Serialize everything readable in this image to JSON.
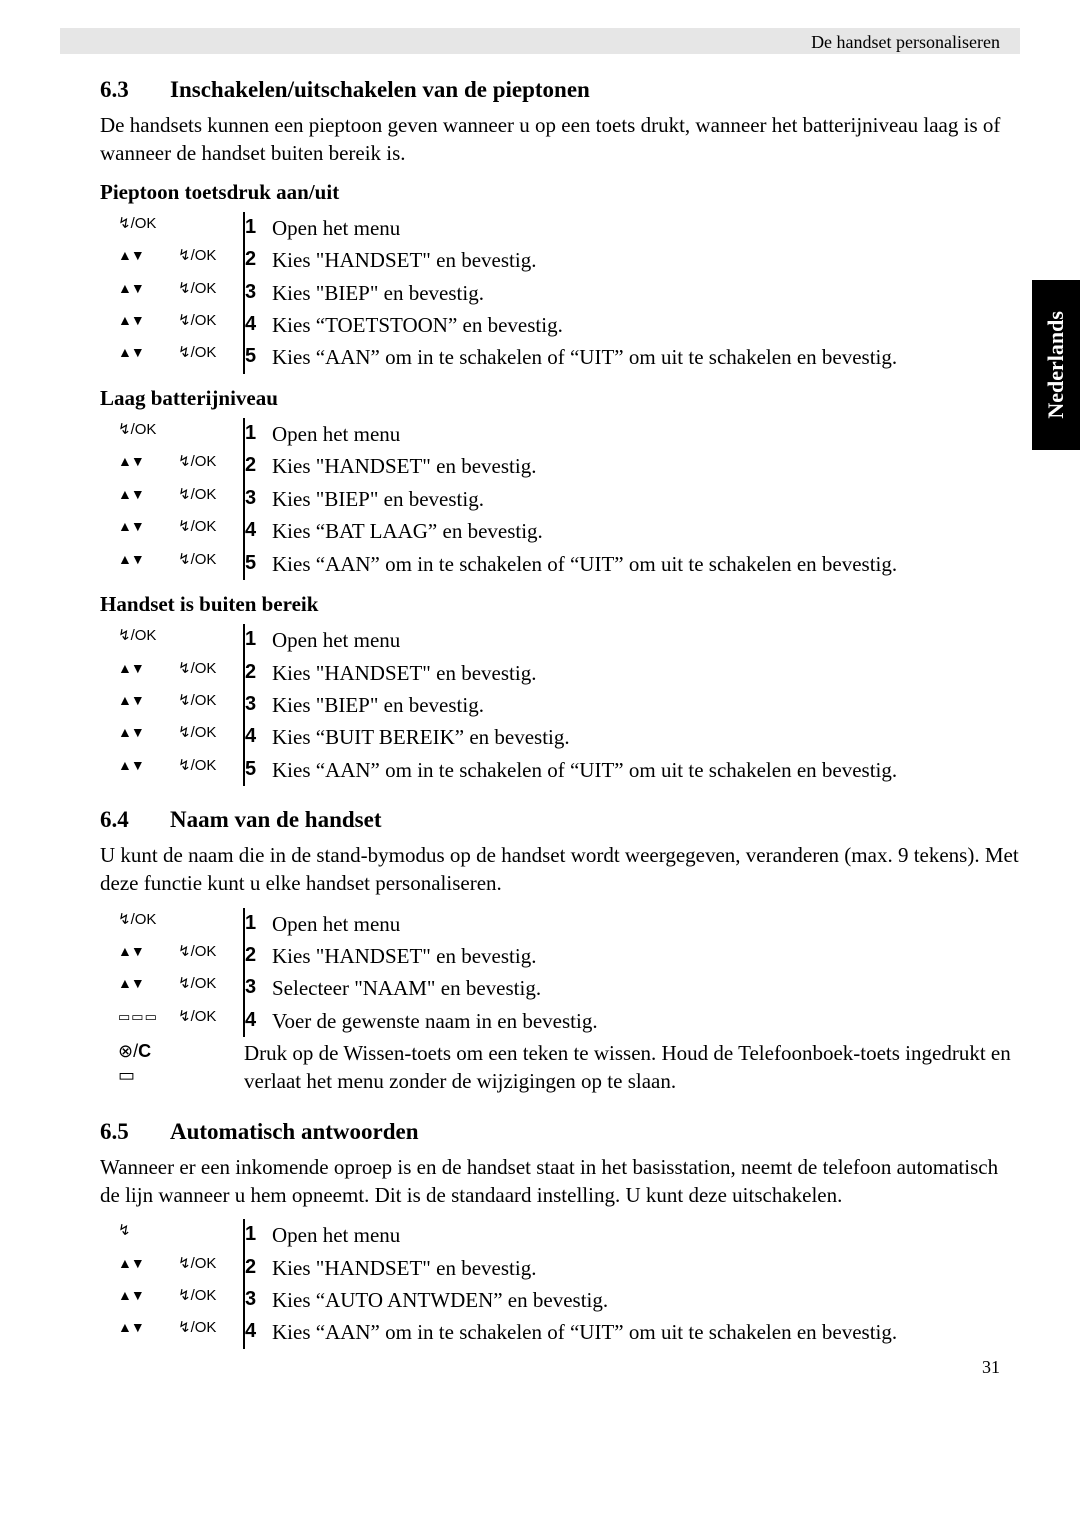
{
  "header": "De handset personaliseren",
  "side_tab": "Nederlands",
  "page_number": "31",
  "icons": {
    "nav": "▲▼",
    "ok": "↯/OK",
    "menu": "↯",
    "keypad": "▭▭▭",
    "clear": "⊗/C",
    "book": "▭"
  },
  "sec63": {
    "num": "6.3",
    "title": "Inschakelen/uitschakelen van de pieptonen",
    "para": "De handsets kunnen een pieptoon geven wanneer u op een toets drukt, wanneer het batterijniveau laag is of wanneer de handset buiten bereik is.",
    "sub1": {
      "title": "Pieptoon toetsdruk aan/uit",
      "steps": [
        {
          "i1": "ok",
          "i2": "",
          "n": "1",
          "t": "Open het menu"
        },
        {
          "i1": "nav",
          "i2": "ok",
          "n": "2",
          "t": "Kies \"HANDSET\" en bevestig."
        },
        {
          "i1": "nav",
          "i2": "ok",
          "n": "3",
          "t": "Kies \"BIEP\" en bevestig."
        },
        {
          "i1": "nav",
          "i2": "ok",
          "n": "4",
          "t": "Kies “TOETSTOON” en bevestig."
        },
        {
          "i1": "nav",
          "i2": "ok",
          "n": "5",
          "t": "Kies “AAN” om in te schakelen of “UIT” om uit te schakelen en bevestig."
        }
      ]
    },
    "sub2": {
      "title": "Laag batterijniveau",
      "steps": [
        {
          "i1": "ok",
          "i2": "",
          "n": "1",
          "t": "Open het menu"
        },
        {
          "i1": "nav",
          "i2": "ok",
          "n": "2",
          "t": "Kies \"HANDSET\" en bevestig."
        },
        {
          "i1": "nav",
          "i2": "ok",
          "n": "3",
          "t": "Kies \"BIEP\" en bevestig."
        },
        {
          "i1": "nav",
          "i2": "ok",
          "n": "4",
          "t": "Kies “BAT LAAG” en bevestig."
        },
        {
          "i1": "nav",
          "i2": "ok",
          "n": "5",
          "t": "Kies “AAN” om in te schakelen of “UIT” om uit te schakelen en bevestig."
        }
      ]
    },
    "sub3": {
      "title": "Handset is buiten bereik",
      "steps": [
        {
          "i1": "ok",
          "i2": "",
          "n": "1",
          "t": "Open het menu"
        },
        {
          "i1": "nav",
          "i2": "ok",
          "n": "2",
          "t": "Kies \"HANDSET\" en bevestig."
        },
        {
          "i1": "nav",
          "i2": "ok",
          "n": "3",
          "t": "Kies \"BIEP\" en bevestig."
        },
        {
          "i1": "nav",
          "i2": "ok",
          "n": "4",
          "t": "Kies “BUIT BEREIK” en bevestig."
        },
        {
          "i1": "nav",
          "i2": "ok",
          "n": "5",
          "t": "Kies “AAN” om in te schakelen of “UIT” om uit te schakelen en bevestig."
        }
      ]
    }
  },
  "sec64": {
    "num": "6.4",
    "title": "Naam van de handset",
    "para": "U kunt de naam die in de stand-bymodus op de handset wordt weergegeven, veranderen (max. 9 tekens). Met deze functie kunt u elke handset personaliseren.",
    "steps": [
      {
        "i1": "ok",
        "i2": "",
        "n": "1",
        "t": "Open het menu"
      },
      {
        "i1": "nav",
        "i2": "ok",
        "n": "2",
        "t": "Kies \"HANDSET\" en bevestig."
      },
      {
        "i1": "nav",
        "i2": "ok",
        "n": "3",
        "t": "Selecteer \"NAAM\" en bevestig."
      },
      {
        "i1": "keypad",
        "i2": "ok",
        "n": "4",
        "t": "Voer de gewenste naam in en bevestig."
      }
    ],
    "note_icons": [
      "clear",
      "book"
    ],
    "note": "Druk op de Wissen-toets om een teken te wissen. Houd de Telefoonboek-toets ingedrukt en verlaat het menu zonder de wijzigingen op te slaan."
  },
  "sec65": {
    "num": "6.5",
    "title": "Automatisch antwoorden",
    "para": "Wanneer er een inkomende oproep is en de handset staat in het basisstation, neemt de telefoon automatisch de lijn wanneer u hem opneemt. Dit is de standaard instelling. U kunt deze uitschakelen.",
    "steps": [
      {
        "i1": "menu",
        "i2": "",
        "n": "1",
        "t": "Open het menu"
      },
      {
        "i1": "nav",
        "i2": "ok",
        "n": "2",
        "t": "Kies \"HANDSET\" en bevestig."
      },
      {
        "i1": "nav",
        "i2": "ok",
        "n": "3",
        "t": "Kies “AUTO ANTWDEN” en bevestig."
      },
      {
        "i1": "nav",
        "i2": "ok",
        "n": "4",
        "t": "Kies “AAN” om in te schakelen of “UIT” om uit te schakelen en bevestig."
      }
    ]
  }
}
